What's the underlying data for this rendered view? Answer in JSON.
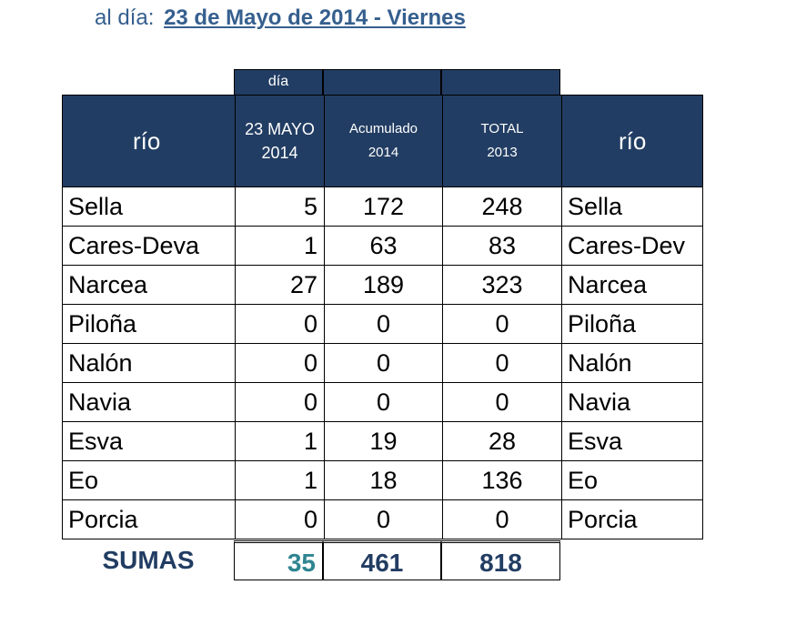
{
  "title": {
    "prefix": "al día:",
    "date": "23 de Mayo de 2014 - Viernes"
  },
  "header": {
    "day_top": "día",
    "col_rio": "río",
    "col_day_line1": "23 MAYO",
    "col_day_line2": "2014",
    "col_acum_line1": "Acumulado",
    "col_acum_line2": "2014",
    "col_total_line1": "TOTAL",
    "col_total_line2": "2013",
    "col_rio_right": "río"
  },
  "rows": [
    {
      "name": "Sella",
      "day": "5",
      "acum": "172",
      "total": "248",
      "name2": "Sella"
    },
    {
      "name": "Cares-Deva",
      "day": "1",
      "acum": "63",
      "total": "83",
      "name2": "Cares-Dev"
    },
    {
      "name": "Narcea",
      "day": "27",
      "acum": "189",
      "total": "323",
      "name2": "Narcea"
    },
    {
      "name": "Piloña",
      "day": "0",
      "acum": "0",
      "total": "0",
      "name2": "Piloña"
    },
    {
      "name": "Nalón",
      "day": "0",
      "acum": "0",
      "total": "0",
      "name2": "Nalón"
    },
    {
      "name": "Navia",
      "day": "0",
      "acum": "0",
      "total": "0",
      "name2": "Navia"
    },
    {
      "name": "Esva",
      "day": "1",
      "acum": "19",
      "total": "28",
      "name2": "Esva"
    },
    {
      "name": "Eo",
      "day": "1",
      "acum": "18",
      "total": "136",
      "name2": "Eo"
    },
    {
      "name": "Porcia",
      "day": "0",
      "acum": "0",
      "total": "0",
      "name2": "Porcia"
    }
  ],
  "sums": {
    "label": "SUMAS",
    "day": "35",
    "acum": "461",
    "total": "818"
  },
  "colors": {
    "header_bg": "#223d63",
    "title": "#355f8e",
    "day_values": "#2f8591"
  }
}
